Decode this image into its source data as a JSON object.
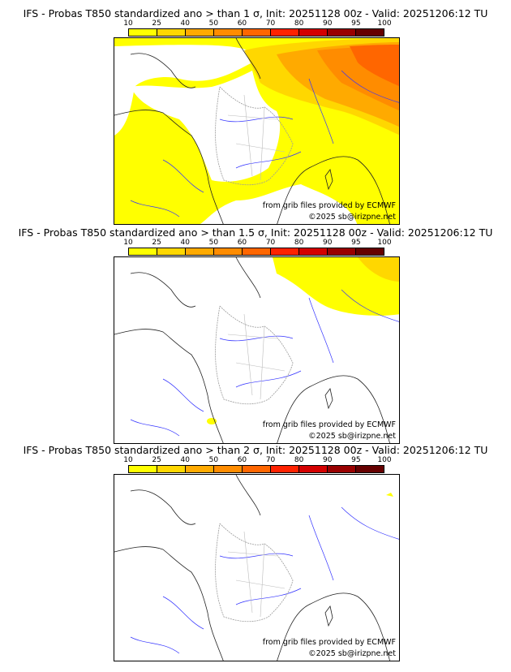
{
  "colorbar": {
    "ticks": [
      "10",
      "25",
      "40",
      "50",
      "60",
      "70",
      "80",
      "90",
      "95",
      "100"
    ],
    "colors": [
      "#ffff00",
      "#ffd700",
      "#ffaa00",
      "#ff8c00",
      "#ff6600",
      "#ff2200",
      "#d40000",
      "#990000",
      "#660000"
    ]
  },
  "panels": [
    {
      "title": "IFS - Probas T850  standardized ano > than 1 σ, Init: 20251128 00z - Valid: 20251206:12 TU",
      "credit": "from grib files provided by ECMWF",
      "copyright": "©2025 sb@irizpne.net"
    },
    {
      "title": "IFS - Probas T850  standardized ano > than 1.5 σ, Init: 20251128 00z - Valid: 20251206:12 TU",
      "credit": "from grib files provided by ECMWF",
      "copyright": "©2025 sb@irizpne.net"
    },
    {
      "title": "IFS - Probas T850  standardized ano > than 2 σ, Init: 20251128 00z - Valid: 20251206:12 TU",
      "credit": "from grib files provided by ECMWF",
      "copyright": "©2025 sb@irizpne.net"
    }
  ]
}
